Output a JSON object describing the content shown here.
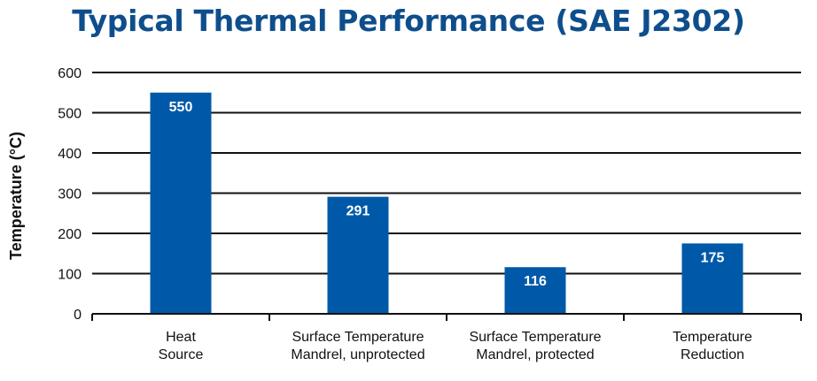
{
  "chart_data": {
    "type": "bar",
    "title": "Typical Thermal Performance (SAE J2302)",
    "xlabel": "",
    "ylabel": "Temperature (°C)",
    "ylim": [
      0,
      600
    ],
    "yticks": [
      0,
      100,
      200,
      300,
      400,
      500,
      600
    ],
    "grid": true,
    "categories": [
      [
        "Heat",
        "Source"
      ],
      [
        "Surface Temperature",
        "Mandrel, unprotected"
      ],
      [
        "Surface Temperature",
        "Mandrel, protected"
      ],
      [
        "Temperature",
        "Reduction"
      ]
    ],
    "values": [
      550,
      291,
      116,
      175
    ],
    "data_labels": [
      "550",
      "291",
      "116",
      "175"
    ],
    "bar_color": "#0059a8",
    "title_color": "#0e4e8c"
  }
}
